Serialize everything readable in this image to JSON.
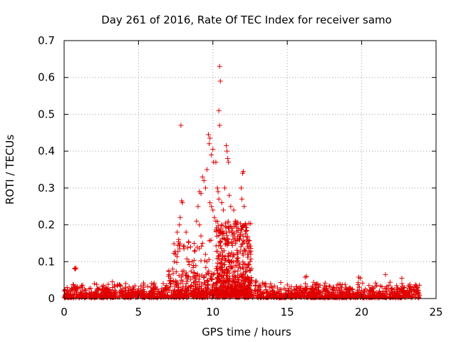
{
  "chart_data": {
    "type": "scatter",
    "title": "Day 261 of 2016, Rate Of TEC Index for receiver samo",
    "xlabel": "GPS time / hours",
    "ylabel": "ROTI / TECUs",
    "xlim": [
      0,
      25
    ],
    "ylim": [
      0,
      0.7
    ],
    "xticks": [
      0,
      5,
      10,
      15,
      20,
      25
    ],
    "xtick_labels": [
      "0",
      "5",
      "10",
      "15",
      "20",
      "25"
    ],
    "yticks": [
      0,
      0.1,
      0.2,
      0.3,
      0.4,
      0.5,
      0.6,
      0.7
    ],
    "ytick_labels": [
      "0",
      "0.1",
      "0.2",
      "0.3",
      "0.4",
      "0.5",
      "0.6",
      "0.7"
    ],
    "grid": true,
    "marker": "plus",
    "color": "#e00000",
    "series": [
      {
        "name": "ROTI",
        "points": [
          [
            0.7,
            0.082
          ],
          [
            0.75,
            0.08
          ],
          [
            0.8,
            0.083
          ],
          [
            7.85,
            0.47
          ],
          [
            7.9,
            0.265
          ],
          [
            7.95,
            0.26
          ],
          [
            7.8,
            0.22
          ],
          [
            7.75,
            0.2
          ],
          [
            7.7,
            0.16
          ],
          [
            7.6,
            0.18
          ],
          [
            7.5,
            0.12
          ],
          [
            7.4,
            0.1
          ],
          [
            7.3,
            0.08
          ],
          [
            8.2,
            0.18
          ],
          [
            8.5,
            0.14
          ],
          [
            8.6,
            0.1
          ],
          [
            9.1,
            0.29
          ],
          [
            9.2,
            0.285
          ],
          [
            9.3,
            0.33
          ],
          [
            9.4,
            0.32
          ],
          [
            9.5,
            0.3
          ],
          [
            9.6,
            0.35
          ],
          [
            9.7,
            0.445
          ],
          [
            9.75,
            0.42
          ],
          [
            9.8,
            0.435
          ],
          [
            9.9,
            0.39
          ],
          [
            10.0,
            0.405
          ],
          [
            10.05,
            0.37
          ],
          [
            10.2,
            0.37
          ],
          [
            10.3,
            0.3
          ],
          [
            10.35,
            0.29
          ],
          [
            10.4,
            0.27
          ],
          [
            10.45,
            0.63
          ],
          [
            10.5,
            0.59
          ],
          [
            10.4,
            0.51
          ],
          [
            10.45,
            0.47
          ],
          [
            9.8,
            0.26
          ],
          [
            9.9,
            0.25
          ],
          [
            10.0,
            0.24
          ],
          [
            10.1,
            0.22
          ],
          [
            10.2,
            0.21
          ],
          [
            10.6,
            0.26
          ],
          [
            10.7,
            0.24
          ],
          [
            10.9,
            0.415
          ],
          [
            10.95,
            0.4
          ],
          [
            11.0,
            0.38
          ],
          [
            11.05,
            0.37
          ],
          [
            10.8,
            0.3
          ],
          [
            11.1,
            0.28
          ],
          [
            11.2,
            0.25
          ],
          [
            11.4,
            0.24
          ],
          [
            11.5,
            0.21
          ],
          [
            11.6,
            0.2
          ],
          [
            11.7,
            0.19
          ],
          [
            11.8,
            0.16
          ],
          [
            11.9,
            0.3
          ],
          [
            11.95,
            0.27
          ],
          [
            12.0,
            0.34
          ],
          [
            12.05,
            0.345
          ],
          [
            12.1,
            0.25
          ],
          [
            12.2,
            0.2
          ],
          [
            12.3,
            0.15
          ],
          [
            12.4,
            0.12
          ],
          [
            12.5,
            0.1
          ],
          [
            9.0,
            0.25
          ],
          [
            9.1,
            0.2
          ],
          [
            9.2,
            0.17
          ],
          [
            9.3,
            0.15
          ],
          [
            9.5,
            0.12
          ],
          [
            9.6,
            0.1
          ],
          [
            8.9,
            0.21
          ],
          [
            8.8,
            0.13
          ],
          [
            8.7,
            0.09
          ],
          [
            10.9,
            0.18
          ],
          [
            11.0,
            0.16
          ],
          [
            11.3,
            0.19
          ],
          [
            16.2,
            0.058
          ],
          [
            16.3,
            0.06
          ],
          [
            19.8,
            0.058
          ],
          [
            19.9,
            0.055
          ],
          [
            21.6,
            0.065
          ],
          [
            22.7,
            0.055
          ]
        ]
      }
    ]
  }
}
